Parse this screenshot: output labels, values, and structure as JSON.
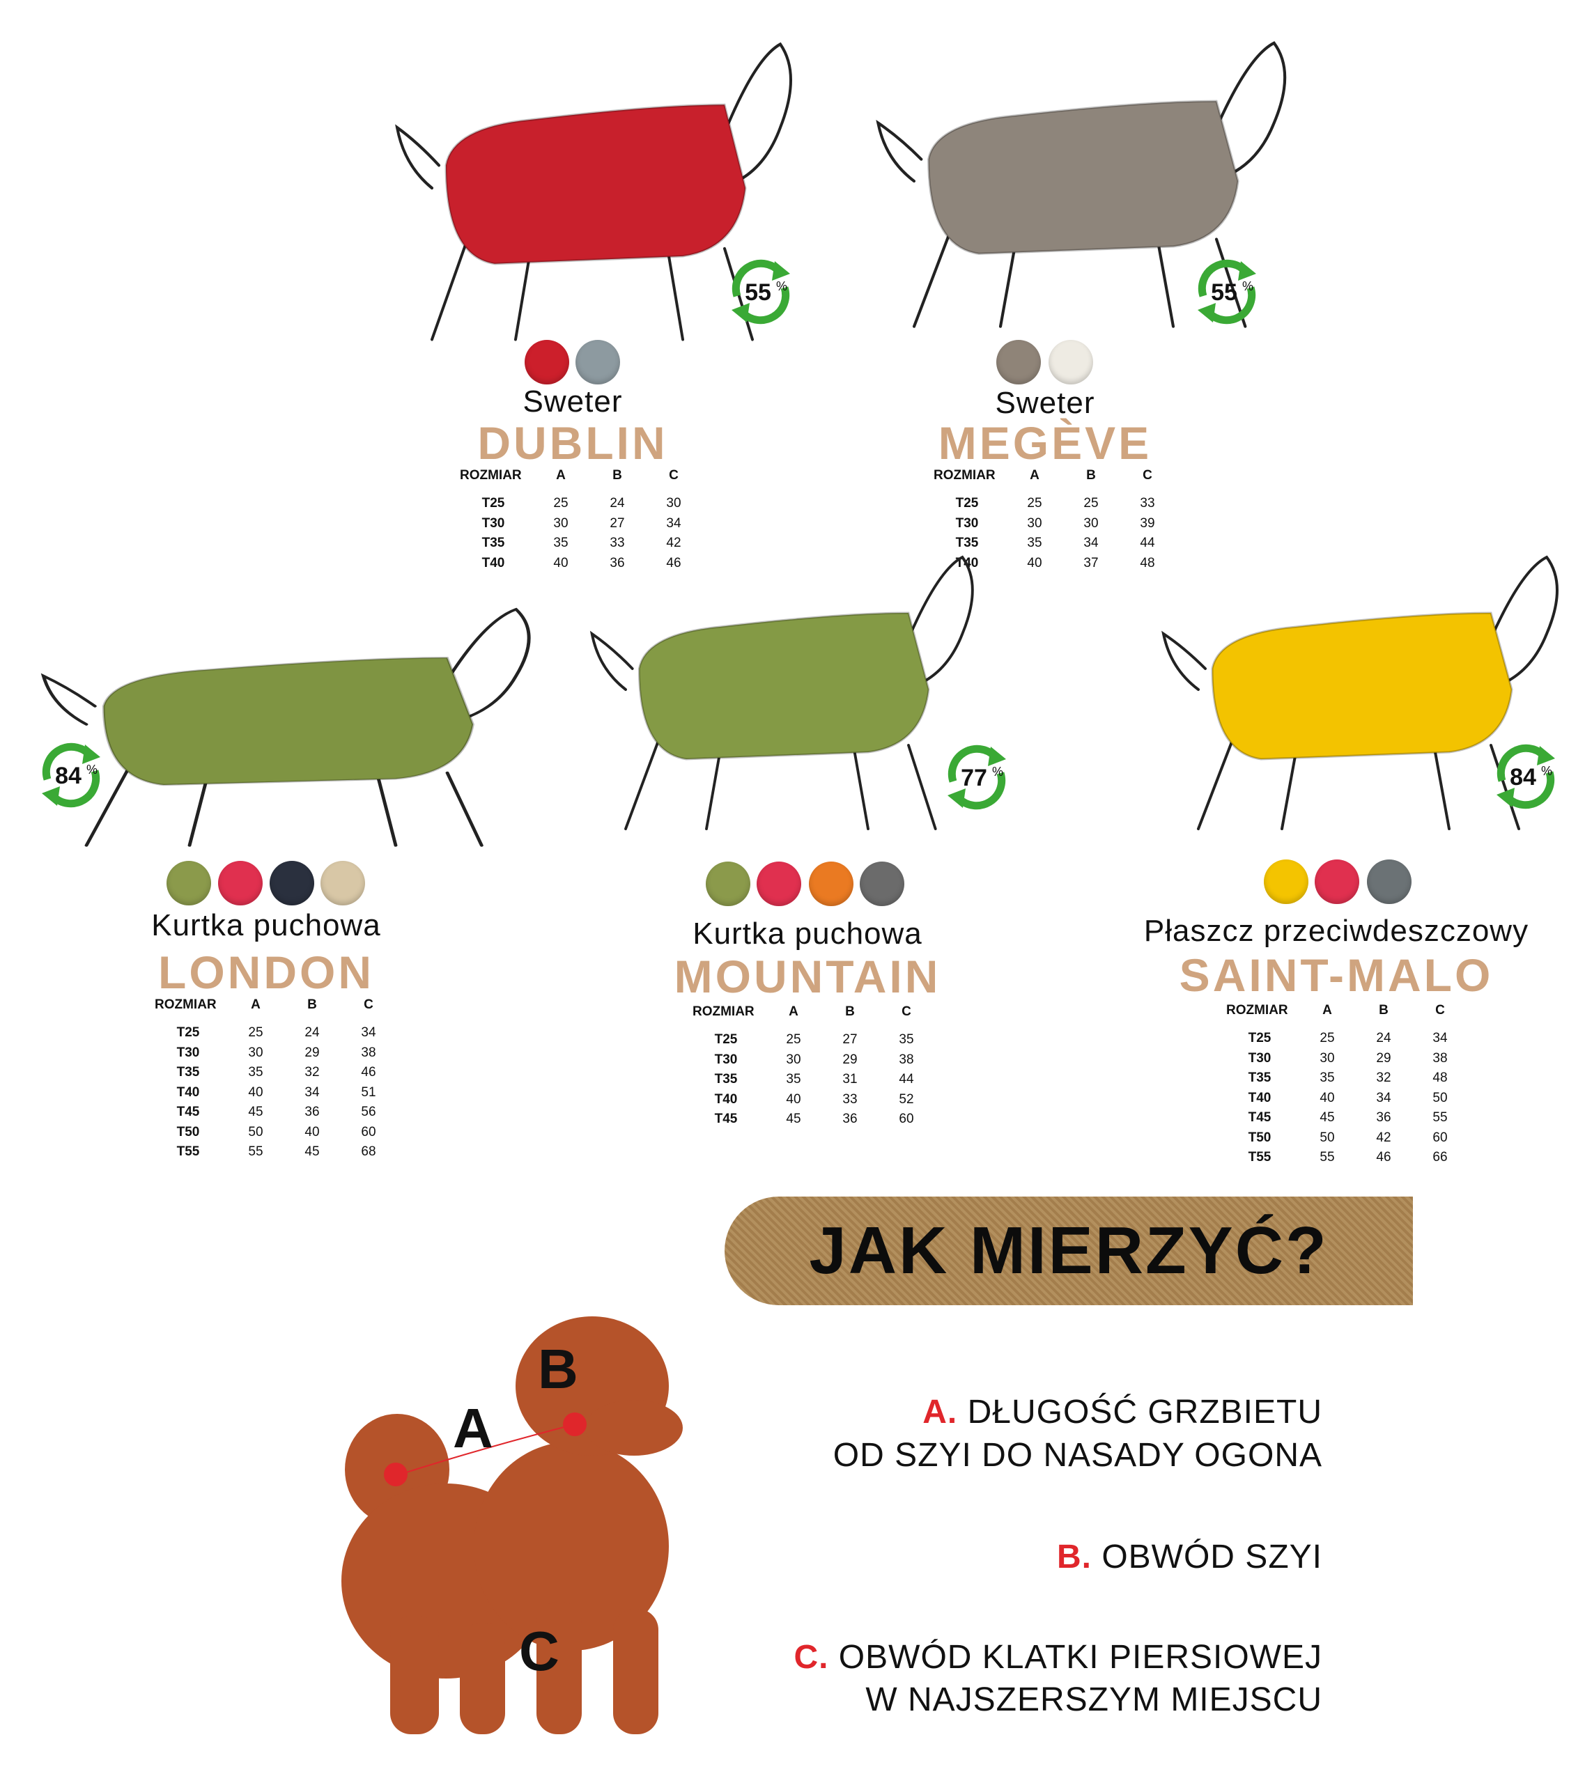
{
  "products": [
    {
      "type": "Sweter",
      "name": "DUBLIN",
      "recycled": "55",
      "swatches": [
        "#cc1f2b",
        "#8d9aa0"
      ],
      "garment": "#c8202c",
      "table": {
        "headers": [
          "ROZMIAR",
          "A",
          "B",
          "C"
        ],
        "rows": [
          [
            "T25",
            "25",
            "24",
            "30"
          ],
          [
            "T30",
            "30",
            "27",
            "34"
          ],
          [
            "T35",
            "35",
            "33",
            "42"
          ],
          [
            "T40",
            "40",
            "36",
            "46"
          ]
        ]
      }
    },
    {
      "type": "Sweter",
      "name": "MEGÈVE",
      "recycled": "55",
      "swatches": [
        "#8f8478",
        "#eeebe3"
      ],
      "garment": "#8e857b",
      "table": {
        "headers": [
          "ROZMIAR",
          "A",
          "B",
          "C"
        ],
        "rows": [
          [
            "T25",
            "25",
            "25",
            "33"
          ],
          [
            "T30",
            "30",
            "30",
            "39"
          ],
          [
            "T35",
            "35",
            "34",
            "44"
          ],
          [
            "T40",
            "40",
            "37",
            "48"
          ]
        ]
      }
    },
    {
      "type": "Kurtka puchowa",
      "name": "LONDON",
      "recycled": "84",
      "swatches": [
        "#8b9a4b",
        "#e0304f",
        "#2a303e",
        "#d8c7a6"
      ],
      "garment": "#7f9442",
      "table": {
        "headers": [
          "ROZMIAR",
          "A",
          "B",
          "C"
        ],
        "rows": [
          [
            "T25",
            "25",
            "24",
            "34"
          ],
          [
            "T30",
            "30",
            "29",
            "38"
          ],
          [
            "T35",
            "35",
            "32",
            "46"
          ],
          [
            "T40",
            "40",
            "34",
            "51"
          ],
          [
            "T45",
            "45",
            "36",
            "56"
          ],
          [
            "T50",
            "50",
            "40",
            "60"
          ],
          [
            "T55",
            "55",
            "45",
            "68"
          ]
        ]
      }
    },
    {
      "type": "Kurtka puchowa",
      "name": "MOUNTAIN",
      "recycled": "77",
      "swatches": [
        "#8b9a4b",
        "#e0304f",
        "#ea7a22",
        "#6b6b6b"
      ],
      "garment": "#849a45",
      "table": {
        "headers": [
          "ROZMIAR",
          "A",
          "B",
          "C"
        ],
        "rows": [
          [
            "T25",
            "25",
            "27",
            "35"
          ],
          [
            "T30",
            "30",
            "29",
            "38"
          ],
          [
            "T35",
            "35",
            "31",
            "44"
          ],
          [
            "T40",
            "40",
            "33",
            "52"
          ],
          [
            "T45",
            "45",
            "36",
            "60"
          ]
        ]
      }
    },
    {
      "type": "Płaszcz przeciwdeszczowy",
      "name": "SAINT-MALO",
      "recycled": "84",
      "swatches": [
        "#f4c400",
        "#e0304f",
        "#6b7275"
      ],
      "garment": "#f3c300",
      "table": {
        "headers": [
          "ROZMIAR",
          "A",
          "B",
          "C"
        ],
        "rows": [
          [
            "T25",
            "25",
            "24",
            "34"
          ],
          [
            "T30",
            "30",
            "29",
            "38"
          ],
          [
            "T35",
            "35",
            "32",
            "48"
          ],
          [
            "T40",
            "40",
            "34",
            "50"
          ],
          [
            "T45",
            "45",
            "36",
            "55"
          ],
          [
            "T50",
            "50",
            "42",
            "60"
          ],
          [
            "T55",
            "55",
            "46",
            "66"
          ]
        ]
      }
    }
  ],
  "badge_unit": "%",
  "how_to": {
    "title": "JAK MIERZYĆ?",
    "labels": [
      "A",
      "B",
      "C"
    ],
    "items": [
      {
        "letter": "A.",
        "lines": [
          "DŁUGOŚĆ GRZBIETU",
          "OD SZYI DO NASADY OGONA"
        ]
      },
      {
        "letter": "B.",
        "lines": [
          "OBWÓD SZYI"
        ]
      },
      {
        "letter": "C.",
        "lines": [
          "OBWÓD KLATKI PIERSIOWEJ",
          "W NAJSZERSZYM MIEJSCU"
        ]
      }
    ]
  },
  "colors": {
    "title_tan": "#cfa47f",
    "accent_red": "#e0262b",
    "recycle_green": "#3aa935"
  }
}
